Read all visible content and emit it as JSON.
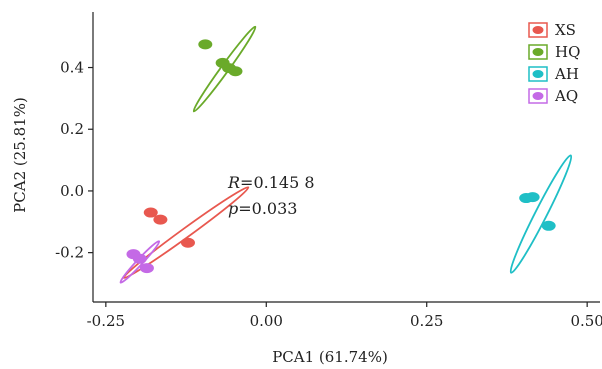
{
  "chart_data": {
    "type": "scatter",
    "title": "",
    "xlabel": "PCA1 (61.74%)",
    "ylabel": "PCA2 (25.81%)",
    "xlim": [
      -0.27,
      0.52
    ],
    "ylim": [
      -0.36,
      0.58
    ],
    "xticks": [
      -0.25,
      0.0,
      0.25,
      0.5
    ],
    "xtick_labels": [
      "-0.25",
      "0.00",
      "0.25",
      "0.50"
    ],
    "yticks": [
      -0.2,
      0.0,
      0.2,
      0.4
    ],
    "ytick_labels": [
      "-0.2",
      "0.0",
      "0.2",
      "0.4"
    ],
    "grid": false,
    "legend": "top-right",
    "series": [
      {
        "name": "XS",
        "color": "#e8584f",
        "points": [
          [
            -0.18,
            -0.07
          ],
          [
            -0.165,
            -0.093
          ],
          [
            -0.122,
            -0.168
          ]
        ],
        "ellipse": {
          "cx": -0.125,
          "cy": -0.135,
          "length": 0.24,
          "width": 0.014,
          "angle": -36
        }
      },
      {
        "name": "HQ",
        "color": "#6aaa2a",
        "points": [
          [
            -0.095,
            0.475
          ],
          [
            -0.068,
            0.415
          ],
          [
            -0.058,
            0.398
          ],
          [
            -0.048,
            0.388
          ]
        ],
        "ellipse": {
          "cx": -0.065,
          "cy": 0.395,
          "length": 0.163,
          "width": 0.012,
          "angle": -54
        }
      },
      {
        "name": "AH",
        "color": "#1fbfc6",
        "points": [
          [
            0.405,
            -0.023
          ],
          [
            0.415,
            -0.02
          ],
          [
            0.44,
            -0.113
          ]
        ],
        "ellipse": {
          "cx": 0.428,
          "cy": -0.075,
          "length": 0.205,
          "width": 0.018,
          "angle": -63
        }
      },
      {
        "name": "AQ",
        "color": "#c46ae6",
        "points": [
          [
            -0.207,
            -0.205
          ],
          [
            -0.197,
            -0.22
          ],
          [
            -0.186,
            -0.25
          ]
        ],
        "ellipse": {
          "cx": -0.197,
          "cy": -0.23,
          "length": 0.088,
          "width": 0.009,
          "angle": -47
        }
      }
    ],
    "annotations": {
      "r_symbol": "R",
      "r_value": "=0.145 8",
      "p_symbol": "p",
      "p_value": "=0.033"
    }
  }
}
